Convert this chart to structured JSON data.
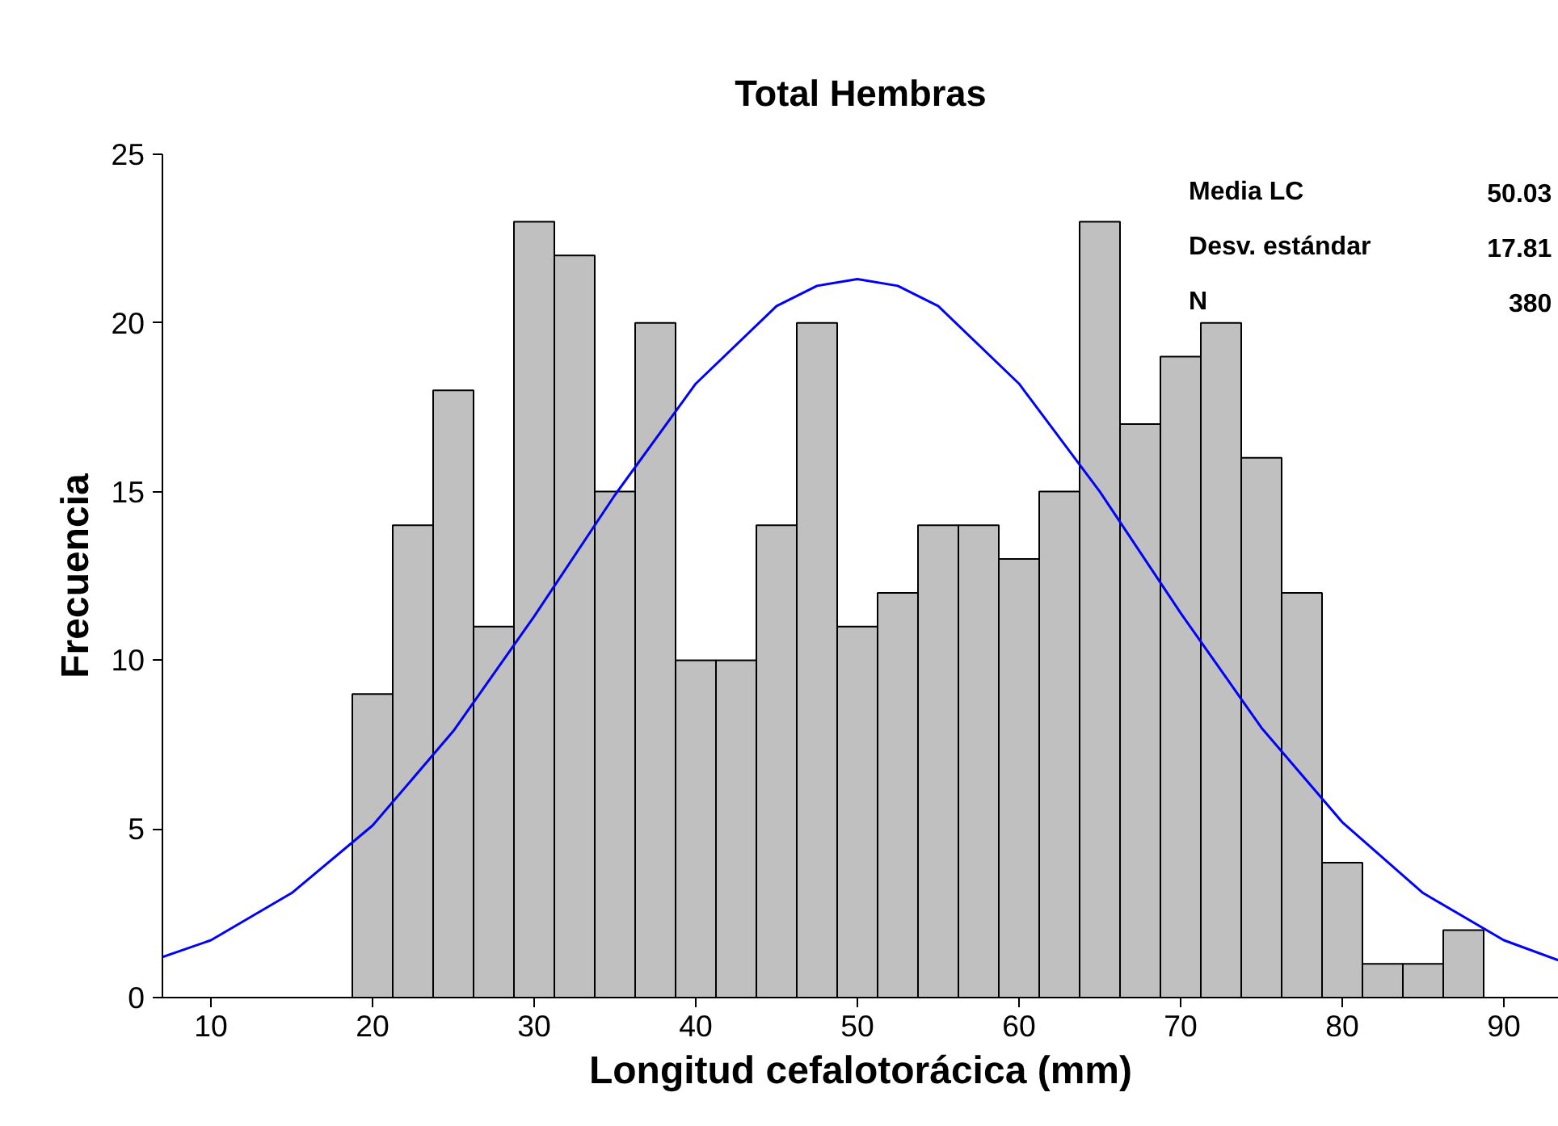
{
  "chart_data": {
    "type": "histogram",
    "title": "Total Hembras",
    "xlabel": "Longitud cefalotorácica (mm)",
    "ylabel": "Frecuencia",
    "bins": [
      18.75,
      21.25,
      23.75,
      26.25,
      28.75,
      31.25,
      33.75,
      36.25,
      38.75,
      41.25,
      43.75,
      46.25,
      48.75,
      51.25,
      53.75,
      56.25,
      58.75,
      61.25,
      63.75,
      66.25,
      68.75,
      71.25,
      73.75,
      76.25,
      78.75,
      81.25,
      83.75,
      86.25,
      88.75
    ],
    "series": [
      {
        "color": "#c0c0c0",
        "values": [
          9,
          14,
          18,
          11,
          23,
          22,
          15,
          20,
          10,
          10,
          14,
          20,
          11,
          12,
          14,
          14,
          13,
          15,
          23,
          17,
          19,
          20,
          16,
          12,
          4,
          1,
          1,
          2
        ]
      },
      {
        "type": "line",
        "color": "#0000ff",
        "x": [
          7,
          10,
          15,
          20,
          25,
          30,
          35,
          40,
          45,
          47.5,
          50,
          52.5,
          55,
          60,
          65,
          70,
          75,
          80,
          85,
          90,
          93.4
        ],
        "values": [
          1.2,
          1.7,
          3.1,
          5.1,
          7.9,
          11.3,
          14.9,
          18.2,
          20.5,
          21.1,
          21.3,
          21.1,
          20.5,
          18.2,
          15.0,
          11.4,
          8.0,
          5.2,
          3.1,
          1.7,
          1.1
        ]
      }
    ],
    "xlim": [
      7,
      93.4
    ],
    "ylim": [
      0,
      25
    ],
    "xticks": [
      10,
      20,
      30,
      40,
      50,
      60,
      70,
      80,
      90
    ],
    "yticks": [
      0,
      5,
      10,
      15,
      20,
      25
    ],
    "grid": false,
    "annotations": [
      "Media LC",
      "50.03",
      "Desv. estándar",
      "17.81",
      "N",
      "380"
    ]
  }
}
